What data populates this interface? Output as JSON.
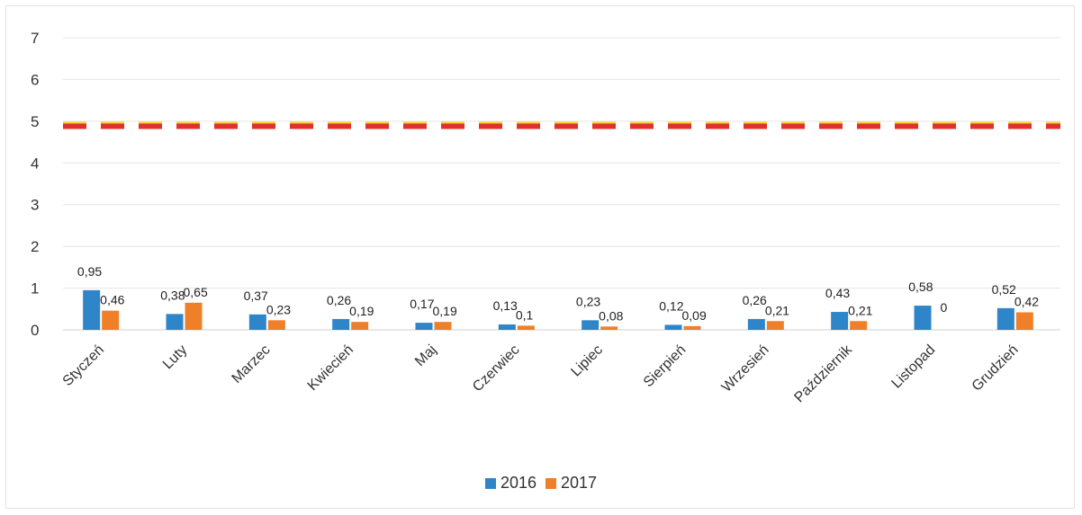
{
  "chart_data": {
    "type": "bar",
    "categories": [
      "Styczeń",
      "Luty",
      "Marzec",
      "Kwiecień",
      "Maj",
      "Czerwiec",
      "Lipiec",
      "Sierpień",
      "Wrzesień",
      "Październik",
      "Listopad",
      "Grudzień"
    ],
    "series": [
      {
        "name": "2016",
        "color": "#2e86c9",
        "values": [
          0.95,
          0.38,
          0.37,
          0.26,
          0.17,
          0.13,
          0.23,
          0.12,
          0.26,
          0.43,
          0.58,
          0.52
        ],
        "labels": [
          "0,95",
          "0,38",
          "0,37",
          "0,26",
          "0,17",
          "0,13",
          "0,23",
          "0,12",
          "0,26",
          "0,43",
          "0,58",
          "0,52"
        ]
      },
      {
        "name": "2017",
        "color": "#f07f2a",
        "values": [
          0.46,
          0.65,
          0.23,
          0.19,
          0.19,
          0.1,
          0.08,
          0.09,
          0.21,
          0.21,
          0,
          0.42
        ],
        "labels": [
          "0,46",
          "0,65",
          "0,23",
          "0,19",
          "0,19",
          "0,1",
          "0,08",
          "0,09",
          "0,21",
          "0,21",
          "0",
          "0,42"
        ]
      }
    ],
    "reference_line": {
      "value": 4.9,
      "color": "#e0312b",
      "accent_color": "#f5d12b",
      "style": "dashed"
    },
    "ylim": [
      0,
      7
    ],
    "y_ticks": [
      "0",
      "1",
      "2",
      "3",
      "4",
      "5",
      "6",
      "7"
    ],
    "grid": true,
    "legend_position": "bottom",
    "xlabel": "",
    "ylabel": "",
    "title": ""
  }
}
